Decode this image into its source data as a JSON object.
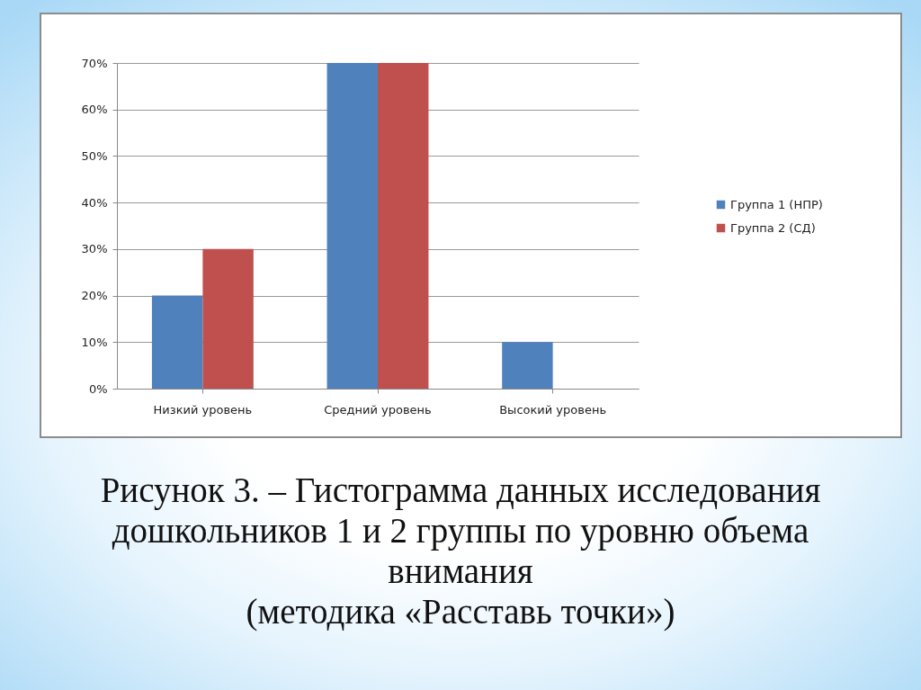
{
  "chart_data": {
    "type": "bar",
    "categories": [
      "Низкий уровень",
      "Средний уровень",
      "Высокий уровень"
    ],
    "series": [
      {
        "name": "Группа 1 (НПР)",
        "color": "#4f81bd",
        "values": [
          20,
          70,
          10
        ]
      },
      {
        "name": "Группа 2 (СД)",
        "color": "#c0504d",
        "values": [
          30,
          70,
          0
        ]
      }
    ],
    "ylim": [
      0,
      70
    ],
    "yticks": [
      {
        "value": 0,
        "label": "0%"
      },
      {
        "value": 10,
        "label": "10%"
      },
      {
        "value": 20,
        "label": "20%"
      },
      {
        "value": 30,
        "label": "30%"
      },
      {
        "value": 40,
        "label": "40%"
      },
      {
        "value": 50,
        "label": "50%"
      },
      {
        "value": 60,
        "label": "60%"
      },
      {
        "value": 70,
        "label": "70%"
      }
    ],
    "grid": "y",
    "legend": "right",
    "annotations": [
      "Рисунок 3. – Гистограмма данных исследования дошкольников 1 и 2 группы по уровню объема внимания",
      "(методика «Расставь точки»)"
    ]
  }
}
